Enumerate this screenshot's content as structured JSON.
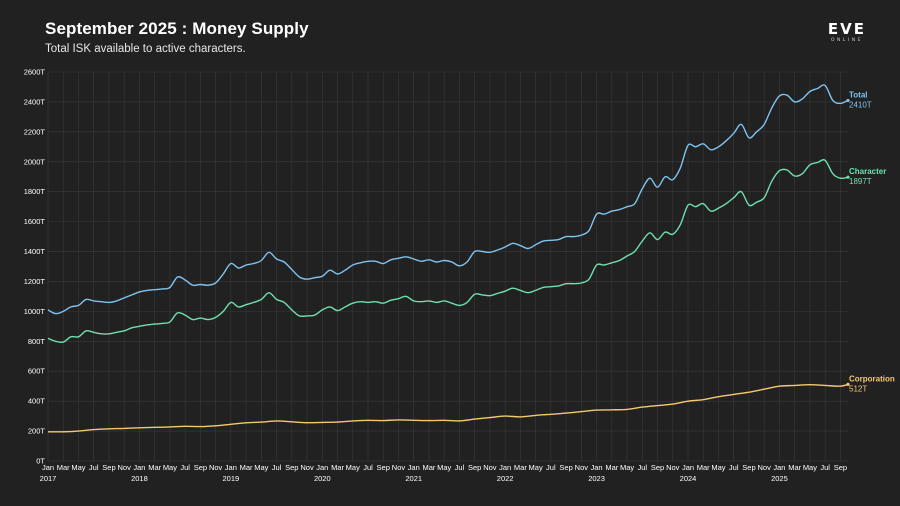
{
  "header": {
    "title": "September 2025 : Money Supply",
    "subtitle": "Total ISK available to active characters."
  },
  "logo": {
    "word": "EVE",
    "sub": "ONLINE"
  },
  "colors": {
    "background": "#212121",
    "grid": "#3a3a3a",
    "total": "#7fc3f0",
    "character": "#6fe0b0",
    "corporation": "#f4c96e"
  },
  "chart_data": {
    "type": "line",
    "title": "September 2025 : Money Supply",
    "subtitle": "Total ISK available to active characters.",
    "x_range": [
      "2017-01",
      "2025-10"
    ],
    "month_tick_labels": [
      "Jan",
      "Mar",
      "May",
      "Jul",
      "Sep",
      "Nov"
    ],
    "year_labels": [
      "2017",
      "2018",
      "2019",
      "2020",
      "2021",
      "2022",
      "2023",
      "2024",
      "2025"
    ],
    "y_ticks": [
      "0T",
      "200T",
      "400T",
      "600T",
      "800T",
      "1000T",
      "1200T",
      "1400T",
      "1600T",
      "1800T",
      "2000T",
      "2200T",
      "2400T",
      "2600T"
    ],
    "ylim": [
      0,
      2600
    ],
    "y_unit": "T",
    "grid": true,
    "series": [
      {
        "name": "Total",
        "end_label": "2410T",
        "points": [
          [
            "2017-01",
            1010
          ],
          [
            "2017-02",
            985
          ],
          [
            "2017-03",
            1000
          ],
          [
            "2017-04",
            1030
          ],
          [
            "2017-05",
            1040
          ],
          [
            "2017-06",
            1080
          ],
          [
            "2017-07",
            1070
          ],
          [
            "2017-08",
            1065
          ],
          [
            "2017-09",
            1060
          ],
          [
            "2017-10",
            1070
          ],
          [
            "2017-11",
            1090
          ],
          [
            "2017-12",
            1110
          ],
          [
            "2018-01",
            1130
          ],
          [
            "2018-02",
            1140
          ],
          [
            "2018-03",
            1145
          ],
          [
            "2018-04",
            1150
          ],
          [
            "2018-05",
            1160
          ],
          [
            "2018-06",
            1230
          ],
          [
            "2018-07",
            1210
          ],
          [
            "2018-08",
            1175
          ],
          [
            "2018-09",
            1180
          ],
          [
            "2018-10",
            1175
          ],
          [
            "2018-11",
            1190
          ],
          [
            "2018-12",
            1250
          ],
          [
            "2019-01",
            1320
          ],
          [
            "2019-02",
            1290
          ],
          [
            "2019-03",
            1310
          ],
          [
            "2019-04",
            1320
          ],
          [
            "2019-05",
            1340
          ],
          [
            "2019-06",
            1395
          ],
          [
            "2019-07",
            1350
          ],
          [
            "2019-08",
            1330
          ],
          [
            "2019-09",
            1280
          ],
          [
            "2019-10",
            1230
          ],
          [
            "2019-11",
            1215
          ],
          [
            "2019-12",
            1225
          ],
          [
            "2020-01",
            1235
          ],
          [
            "2020-02",
            1275
          ],
          [
            "2020-03",
            1250
          ],
          [
            "2020-04",
            1275
          ],
          [
            "2020-05",
            1310
          ],
          [
            "2020-06",
            1325
          ],
          [
            "2020-07",
            1335
          ],
          [
            "2020-08",
            1335
          ],
          [
            "2020-09",
            1320
          ],
          [
            "2020-10",
            1345
          ],
          [
            "2020-11",
            1355
          ],
          [
            "2020-12",
            1365
          ],
          [
            "2021-01",
            1350
          ],
          [
            "2021-02",
            1335
          ],
          [
            "2021-03",
            1345
          ],
          [
            "2021-04",
            1330
          ],
          [
            "2021-05",
            1340
          ],
          [
            "2021-06",
            1330
          ],
          [
            "2021-07",
            1305
          ],
          [
            "2021-08",
            1330
          ],
          [
            "2021-09",
            1400
          ],
          [
            "2021-10",
            1400
          ],
          [
            "2021-11",
            1395
          ],
          [
            "2021-12",
            1410
          ],
          [
            "2022-01",
            1430
          ],
          [
            "2022-02",
            1455
          ],
          [
            "2022-03",
            1440
          ],
          [
            "2022-04",
            1420
          ],
          [
            "2022-05",
            1445
          ],
          [
            "2022-06",
            1470
          ],
          [
            "2022-07",
            1475
          ],
          [
            "2022-08",
            1480
          ],
          [
            "2022-09",
            1500
          ],
          [
            "2022-10",
            1500
          ],
          [
            "2022-11",
            1510
          ],
          [
            "2022-12",
            1540
          ],
          [
            "2023-01",
            1650
          ],
          [
            "2023-02",
            1650
          ],
          [
            "2023-03",
            1670
          ],
          [
            "2023-04",
            1680
          ],
          [
            "2023-05",
            1700
          ],
          [
            "2023-06",
            1720
          ],
          [
            "2023-07",
            1820
          ],
          [
            "2023-08",
            1890
          ],
          [
            "2023-09",
            1830
          ],
          [
            "2023-10",
            1900
          ],
          [
            "2023-11",
            1880
          ],
          [
            "2023-12",
            1960
          ],
          [
            "2024-01",
            2110
          ],
          [
            "2024-02",
            2100
          ],
          [
            "2024-03",
            2120
          ],
          [
            "2024-04",
            2080
          ],
          [
            "2024-05",
            2100
          ],
          [
            "2024-06",
            2140
          ],
          [
            "2024-07",
            2190
          ],
          [
            "2024-08",
            2250
          ],
          [
            "2024-09",
            2160
          ],
          [
            "2024-10",
            2200
          ],
          [
            "2024-11",
            2250
          ],
          [
            "2024-12",
            2360
          ],
          [
            "2025-01",
            2440
          ],
          [
            "2025-02",
            2445
          ],
          [
            "2025-03",
            2400
          ],
          [
            "2025-04",
            2420
          ],
          [
            "2025-05",
            2470
          ],
          [
            "2025-06",
            2490
          ],
          [
            "2025-07",
            2510
          ],
          [
            "2025-08",
            2410
          ],
          [
            "2025-09",
            2390
          ],
          [
            "2025-10",
            2410
          ]
        ]
      },
      {
        "name": "Character",
        "end_label": "1897T",
        "points": [
          [
            "2017-01",
            820
          ],
          [
            "2017-02",
            800
          ],
          [
            "2017-03",
            795
          ],
          [
            "2017-04",
            830
          ],
          [
            "2017-05",
            830
          ],
          [
            "2017-06",
            870
          ],
          [
            "2017-07",
            860
          ],
          [
            "2017-08",
            850
          ],
          [
            "2017-09",
            850
          ],
          [
            "2017-10",
            860
          ],
          [
            "2017-11",
            870
          ],
          [
            "2017-12",
            890
          ],
          [
            "2018-01",
            900
          ],
          [
            "2018-02",
            910
          ],
          [
            "2018-03",
            915
          ],
          [
            "2018-04",
            920
          ],
          [
            "2018-05",
            930
          ],
          [
            "2018-06",
            990
          ],
          [
            "2018-07",
            975
          ],
          [
            "2018-08",
            945
          ],
          [
            "2018-09",
            955
          ],
          [
            "2018-10",
            945
          ],
          [
            "2018-11",
            960
          ],
          [
            "2018-12",
            1000
          ],
          [
            "2019-01",
            1060
          ],
          [
            "2019-02",
            1030
          ],
          [
            "2019-03",
            1045
          ],
          [
            "2019-04",
            1060
          ],
          [
            "2019-05",
            1080
          ],
          [
            "2019-06",
            1125
          ],
          [
            "2019-07",
            1080
          ],
          [
            "2019-08",
            1060
          ],
          [
            "2019-09",
            1010
          ],
          [
            "2019-10",
            970
          ],
          [
            "2019-11",
            970
          ],
          [
            "2019-12",
            975
          ],
          [
            "2020-01",
            1010
          ],
          [
            "2020-02",
            1030
          ],
          [
            "2020-03",
            1005
          ],
          [
            "2020-04",
            1030
          ],
          [
            "2020-05",
            1055
          ],
          [
            "2020-06",
            1065
          ],
          [
            "2020-07",
            1060
          ],
          [
            "2020-08",
            1065
          ],
          [
            "2020-09",
            1055
          ],
          [
            "2020-10",
            1075
          ],
          [
            "2020-11",
            1085
          ],
          [
            "2020-12",
            1100
          ],
          [
            "2021-01",
            1070
          ],
          [
            "2021-02",
            1065
          ],
          [
            "2021-03",
            1070
          ],
          [
            "2021-04",
            1060
          ],
          [
            "2021-05",
            1070
          ],
          [
            "2021-06",
            1055
          ],
          [
            "2021-07",
            1040
          ],
          [
            "2021-08",
            1060
          ],
          [
            "2021-09",
            1115
          ],
          [
            "2021-10",
            1110
          ],
          [
            "2021-11",
            1105
          ],
          [
            "2021-12",
            1120
          ],
          [
            "2022-01",
            1135
          ],
          [
            "2022-02",
            1155
          ],
          [
            "2022-03",
            1140
          ],
          [
            "2022-04",
            1125
          ],
          [
            "2022-05",
            1140
          ],
          [
            "2022-06",
            1160
          ],
          [
            "2022-07",
            1165
          ],
          [
            "2022-08",
            1170
          ],
          [
            "2022-09",
            1185
          ],
          [
            "2022-10",
            1185
          ],
          [
            "2022-11",
            1190
          ],
          [
            "2022-12",
            1215
          ],
          [
            "2023-01",
            1310
          ],
          [
            "2023-02",
            1310
          ],
          [
            "2023-03",
            1325
          ],
          [
            "2023-04",
            1340
          ],
          [
            "2023-05",
            1370
          ],
          [
            "2023-06",
            1400
          ],
          [
            "2023-07",
            1470
          ],
          [
            "2023-08",
            1525
          ],
          [
            "2023-09",
            1480
          ],
          [
            "2023-10",
            1530
          ],
          [
            "2023-11",
            1515
          ],
          [
            "2023-12",
            1580
          ],
          [
            "2024-01",
            1710
          ],
          [
            "2024-02",
            1700
          ],
          [
            "2024-03",
            1720
          ],
          [
            "2024-04",
            1670
          ],
          [
            "2024-05",
            1690
          ],
          [
            "2024-06",
            1720
          ],
          [
            "2024-07",
            1760
          ],
          [
            "2024-08",
            1800
          ],
          [
            "2024-09",
            1710
          ],
          [
            "2024-10",
            1730
          ],
          [
            "2024-11",
            1760
          ],
          [
            "2024-12",
            1870
          ],
          [
            "2025-01",
            1940
          ],
          [
            "2025-02",
            1945
          ],
          [
            "2025-03",
            1905
          ],
          [
            "2025-04",
            1920
          ],
          [
            "2025-05",
            1980
          ],
          [
            "2025-06",
            1995
          ],
          [
            "2025-07",
            2010
          ],
          [
            "2025-08",
            1920
          ],
          [
            "2025-09",
            1890
          ],
          [
            "2025-10",
            1897
          ]
        ]
      },
      {
        "name": "Corporation",
        "end_label": "512T",
        "points": [
          [
            "2017-01",
            195
          ],
          [
            "2017-03",
            195
          ],
          [
            "2017-05",
            200
          ],
          [
            "2017-07",
            210
          ],
          [
            "2017-09",
            215
          ],
          [
            "2017-11",
            218
          ],
          [
            "2018-01",
            222
          ],
          [
            "2018-03",
            225
          ],
          [
            "2018-05",
            228
          ],
          [
            "2018-07",
            232
          ],
          [
            "2018-09",
            230
          ],
          [
            "2018-11",
            235
          ],
          [
            "2019-01",
            245
          ],
          [
            "2019-03",
            255
          ],
          [
            "2019-05",
            260
          ],
          [
            "2019-07",
            268
          ],
          [
            "2019-09",
            262
          ],
          [
            "2019-11",
            256
          ],
          [
            "2020-01",
            258
          ],
          [
            "2020-03",
            260
          ],
          [
            "2020-05",
            268
          ],
          [
            "2020-07",
            272
          ],
          [
            "2020-09",
            270
          ],
          [
            "2020-11",
            275
          ],
          [
            "2021-01",
            272
          ],
          [
            "2021-03",
            270
          ],
          [
            "2021-05",
            272
          ],
          [
            "2021-07",
            268
          ],
          [
            "2021-09",
            280
          ],
          [
            "2021-11",
            290
          ],
          [
            "2022-01",
            300
          ],
          [
            "2022-03",
            295
          ],
          [
            "2022-05",
            305
          ],
          [
            "2022-07",
            312
          ],
          [
            "2022-09",
            320
          ],
          [
            "2022-11",
            330
          ],
          [
            "2023-01",
            340
          ],
          [
            "2023-03",
            342
          ],
          [
            "2023-05",
            345
          ],
          [
            "2023-07",
            360
          ],
          [
            "2023-09",
            370
          ],
          [
            "2023-11",
            380
          ],
          [
            "2024-01",
            400
          ],
          [
            "2024-03",
            410
          ],
          [
            "2024-05",
            430
          ],
          [
            "2024-07",
            445
          ],
          [
            "2024-09",
            460
          ],
          [
            "2024-11",
            480
          ],
          [
            "2025-01",
            500
          ],
          [
            "2025-03",
            505
          ],
          [
            "2025-05",
            510
          ],
          [
            "2025-07",
            505
          ],
          [
            "2025-09",
            500
          ],
          [
            "2025-10",
            512
          ]
        ]
      }
    ]
  }
}
